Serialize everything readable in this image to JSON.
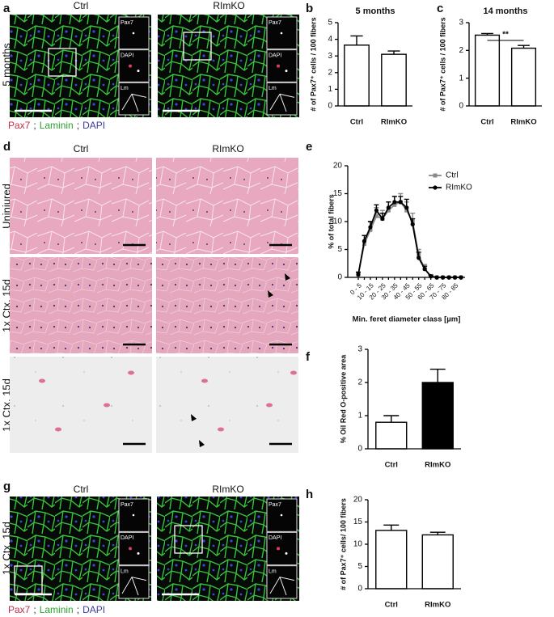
{
  "figure": {
    "panel_a": {
      "label": "a",
      "columns": [
        "Ctrl",
        "RImKO"
      ],
      "row_label": "5 months",
      "insets": [
        "Pax7",
        "DAPI",
        "Lm"
      ],
      "stain_legend": [
        "Pax7",
        ";",
        "Laminin",
        ";",
        "DAPI"
      ]
    },
    "panel_d": {
      "label": "d",
      "columns": [
        "Ctrl",
        "RImKO"
      ],
      "rows": [
        "Uninjured",
        "1x Ctx, 15d",
        "1x Ctx, 15d"
      ]
    },
    "panel_g": {
      "label": "g",
      "columns": [
        "Ctrl",
        "RImKO"
      ],
      "row_label": "1x Ctx, 15d",
      "insets": [
        "Pax7",
        "DAPI",
        "Lm"
      ],
      "stain_legend": [
        "Pax7",
        ";",
        "Laminin",
        ";",
        "DAPI"
      ]
    }
  },
  "chart_data": [
    {
      "type": "bar",
      "panel_label": "b",
      "title": "5 months",
      "ylabel": "# of Pax7⁺ cells / 100 fibers",
      "categories": [
        "Ctrl",
        "RImKO"
      ],
      "values": [
        3.65,
        3.1
      ],
      "errors": [
        0.55,
        0.2
      ],
      "colors": [
        "#ffffff",
        "#ffffff"
      ],
      "ylim": [
        0,
        5
      ],
      "yticks": [
        0,
        1,
        2,
        3,
        4,
        5
      ]
    },
    {
      "type": "bar",
      "panel_label": "c",
      "title": "14 months",
      "ylabel": "# of Pax7⁺ cells / 100 fibers",
      "categories": [
        "Ctrl",
        "RImKO"
      ],
      "values": [
        2.55,
        2.08
      ],
      "errors": [
        0.06,
        0.1
      ],
      "colors": [
        "#ffffff",
        "#ffffff"
      ],
      "ylim": [
        0,
        3
      ],
      "yticks": [
        0,
        1,
        2,
        3
      ],
      "annotations": [
        "**"
      ]
    },
    {
      "type": "line",
      "panel_label": "e",
      "ylabel": "% of total fibers",
      "xlabel": "Min. feret diameter class [µm]",
      "categories": [
        "0 - 5",
        null,
        "10 - 15",
        null,
        "20 - 25",
        null,
        "30 - 35",
        null,
        "40 - 45",
        null,
        "50 - 55",
        null,
        "60 - 65",
        null,
        "70 - 75",
        null,
        "80 - 85",
        null
      ],
      "series": [
        {
          "name": "Ctrl",
          "color": "#8a8a8a",
          "values": [
            0.5,
            6,
            8.5,
            11,
            10.5,
            12,
            13,
            13.5,
            12,
            10,
            4,
            1.5,
            0.2,
            0,
            0,
            0,
            0,
            0
          ],
          "errors": [
            0.5,
            1.5,
            1.5,
            1.5,
            1.5,
            1.5,
            1.5,
            1.5,
            1.5,
            1.5,
            1,
            0.8,
            0.3,
            0,
            0,
            0,
            0,
            0
          ]
        },
        {
          "name": "RImKO",
          "color": "#000000",
          "values": [
            0.5,
            6.5,
            9,
            12,
            10.5,
            12.5,
            13.5,
            13.5,
            12.5,
            9.5,
            3.5,
            1.5,
            0.2,
            0,
            0,
            0,
            0,
            0
          ],
          "errors": [
            0.4,
            1,
            1,
            1,
            1,
            1,
            1,
            1,
            1.5,
            1,
            1,
            0.5,
            0.2,
            0,
            0,
            0,
            0,
            0
          ]
        }
      ],
      "ylim": [
        0,
        20
      ],
      "yticks": [
        0,
        5,
        10,
        15,
        20
      ],
      "legend": "upper right"
    },
    {
      "type": "bar",
      "panel_label": "f",
      "ylabel": "% Oil Red O-positive area",
      "categories": [
        "Ctrl",
        "RImKO"
      ],
      "values": [
        0.8,
        2.0
      ],
      "errors": [
        0.2,
        0.4
      ],
      "colors": [
        "#ffffff",
        "#000000"
      ],
      "ylim": [
        0,
        3
      ],
      "yticks": [
        0,
        1,
        2,
        3
      ]
    },
    {
      "type": "bar",
      "panel_label": "h",
      "ylabel": "# of Pax7⁺ cells/ 100 fibers",
      "categories": [
        "Ctrl",
        "RImKO"
      ],
      "values": [
        13.1,
        12.1
      ],
      "errors": [
        1.2,
        0.6
      ],
      "colors": [
        "#ffffff",
        "#ffffff"
      ],
      "ylim": [
        0,
        20
      ],
      "yticks": [
        0,
        5,
        10,
        15,
        20
      ]
    }
  ]
}
